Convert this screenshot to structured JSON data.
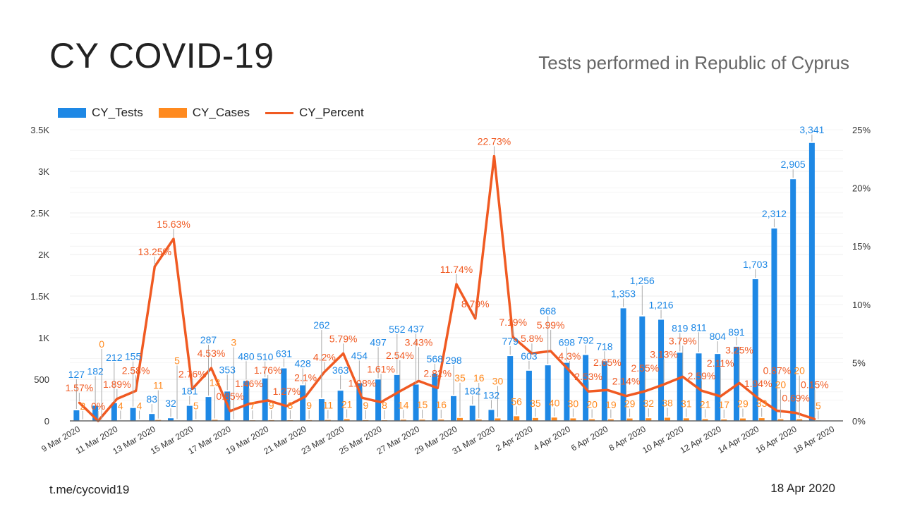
{
  "header": {
    "title": "CY COVID-19",
    "subtitle": "Tests performed in Republic of Cyprus"
  },
  "footer": {
    "source": "t.me/cycovid19",
    "date": "18 Apr 2020"
  },
  "colors": {
    "tests": "#1e88e5",
    "cases": "#ff8a1f",
    "percent": "#f05a22"
  },
  "chart_data": {
    "type": "bar",
    "legend_position": "top-left",
    "grid": true,
    "categories": [
      "9 Mar 2020",
      "10 Mar 2020",
      "11 Mar 2020",
      "12 Mar 2020",
      "13 Mar 2020",
      "14 Mar 2020",
      "15 Mar 2020",
      "16 Mar 2020",
      "17 Mar 2020",
      "18 Mar 2020",
      "19 Mar 2020",
      "20 Mar 2020",
      "21 Mar 2020",
      "22 Mar 2020",
      "23 Mar 2020",
      "24 Mar 2020",
      "25 Mar 2020",
      "26 Mar 2020",
      "27 Mar 2020",
      "28 Mar 2020",
      "29 Mar 2020",
      "30 Mar 2020",
      "31 Mar 2020",
      "1 Apr 2020",
      "2 Apr 2020",
      "3 Apr 2020",
      "4 Apr 2020",
      "5 Apr 2020",
      "6 Apr 2020",
      "7 Apr 2020",
      "8 Apr 2020",
      "9 Apr 2020",
      "10 Apr 2020",
      "11 Apr 2020",
      "12 Apr 2020",
      "13 Apr 2020",
      "14 Apr 2020",
      "15 Apr 2020",
      "16 Apr 2020",
      "17 Apr 2020",
      "18 Apr 2020"
    ],
    "x_tick_labels": [
      "9 Mar 2020",
      "11 Mar 2020",
      "13 Mar 2020",
      "15 Mar 2020",
      "17 Mar 2020",
      "19 Mar 2020",
      "21 Mar 2020",
      "23 Mar 2020",
      "25 Mar 2020",
      "27 Mar 2020",
      "29 Mar 2020",
      "31 Mar 2020",
      "2 Apr 2020",
      "4 Apr 2020",
      "6 Apr 2020",
      "8 Apr 2020",
      "10 Apr 2020",
      "12 Apr 2020",
      "14 Apr 2020",
      "16 Apr 2020",
      "18 Apr 2020"
    ],
    "left_axis": {
      "range": [
        0,
        3500
      ],
      "tick_labels": [
        "0",
        "500",
        "1K",
        "1.5K",
        "2K",
        "2.5K",
        "3K",
        "3.5K"
      ]
    },
    "right_axis": {
      "range": [
        0,
        25
      ],
      "tick_labels": [
        "0%",
        "5%",
        "10%",
        "15%",
        "20%",
        "25%"
      ]
    },
    "series": [
      {
        "name": "CY_Tests",
        "type": "bar",
        "axis": "left",
        "values": [
          127,
          182,
          212,
          155,
          83,
          32,
          181,
          287,
          353,
          480,
          510,
          631,
          428,
          262,
          363,
          454,
          497,
          552,
          437,
          568,
          298,
          182,
          132,
          779,
          603,
          668,
          698,
          792,
          718,
          1353,
          1256,
          1216,
          819,
          811,
          804,
          891,
          1703,
          2312,
          2905,
          3341,
          null
        ],
        "labels": [
          "127",
          "182",
          "212",
          "155",
          "83",
          "32",
          "181",
          "287",
          "353",
          "480",
          "510",
          "631",
          "428",
          "262",
          "363",
          "454",
          "497",
          "552",
          "437",
          "568",
          "298",
          "182",
          "132",
          "779",
          "603",
          "668",
          "698",
          "792",
          "718",
          "1,353",
          "1,256",
          "1,216",
          "819",
          "811",
          "804",
          "891",
          "1,703",
          "2,312",
          "2,905",
          "3,341",
          ""
        ]
      },
      {
        "name": "CY_Cases",
        "type": "bar",
        "axis": "left",
        "values": [
          2,
          0,
          4,
          4,
          11,
          5,
          5,
          13,
          3,
          7,
          9,
          8,
          9,
          11,
          21,
          9,
          8,
          14,
          15,
          16,
          35,
          16,
          30,
          56,
          35,
          40,
          30,
          20,
          19,
          29,
          32,
          38,
          31,
          21,
          17,
          29,
          33,
          20,
          20,
          5,
          null
        ],
        "labels": [
          "2",
          "0",
          "4",
          "4",
          "11",
          "5",
          "5",
          "13",
          "3",
          "7",
          "9",
          "8",
          "9",
          "11",
          "21",
          "9",
          "8",
          "14",
          "15",
          "16",
          "35",
          "16",
          "30",
          "56",
          "35",
          "40",
          "30",
          "20",
          "19",
          "29",
          "32",
          "38",
          "31",
          "21",
          "17",
          "29",
          "33",
          "20",
          "20",
          "5",
          ""
        ]
      },
      {
        "name": "CY_Percent",
        "type": "line",
        "axis": "right",
        "values": [
          1.57,
          0,
          1.89,
          2.58,
          13.25,
          15.63,
          2.76,
          4.53,
          0.85,
          1.46,
          1.76,
          1.27,
          2.1,
          4.2,
          5.79,
          1.98,
          1.61,
          2.54,
          3.43,
          2.82,
          11.74,
          8.79,
          22.73,
          7.19,
          5.8,
          5.99,
          4.3,
          2.53,
          2.65,
          2.14,
          2.55,
          3.13,
          3.79,
          2.59,
          2.11,
          3.25,
          1.94,
          0.87,
          0.69,
          0.15,
          null
        ],
        "labels": [
          "1.57%",
          "0%",
          "1.89%",
          "2.58%",
          "13.25%",
          "15.63%",
          "2.76%",
          "4.53%",
          "0.85%",
          "1.46%",
          "1.76%",
          "1.27%",
          "2.1%",
          "4.2%",
          "5.79%",
          "1.98%",
          "1.61%",
          "2.54%",
          "3.43%",
          "2.82%",
          "11.74%",
          "8.79%",
          "22.73%",
          "7.19%",
          "5.8%",
          "5.99%",
          "4.3%",
          "2.53%",
          "2.65%",
          "2.14%",
          "2.55%",
          "3.13%",
          "3.79%",
          "2.59%",
          "2.11%",
          "3.25%",
          "1.94%",
          "0.87%",
          "0.69%",
          "0.15%",
          ""
        ]
      }
    ]
  }
}
